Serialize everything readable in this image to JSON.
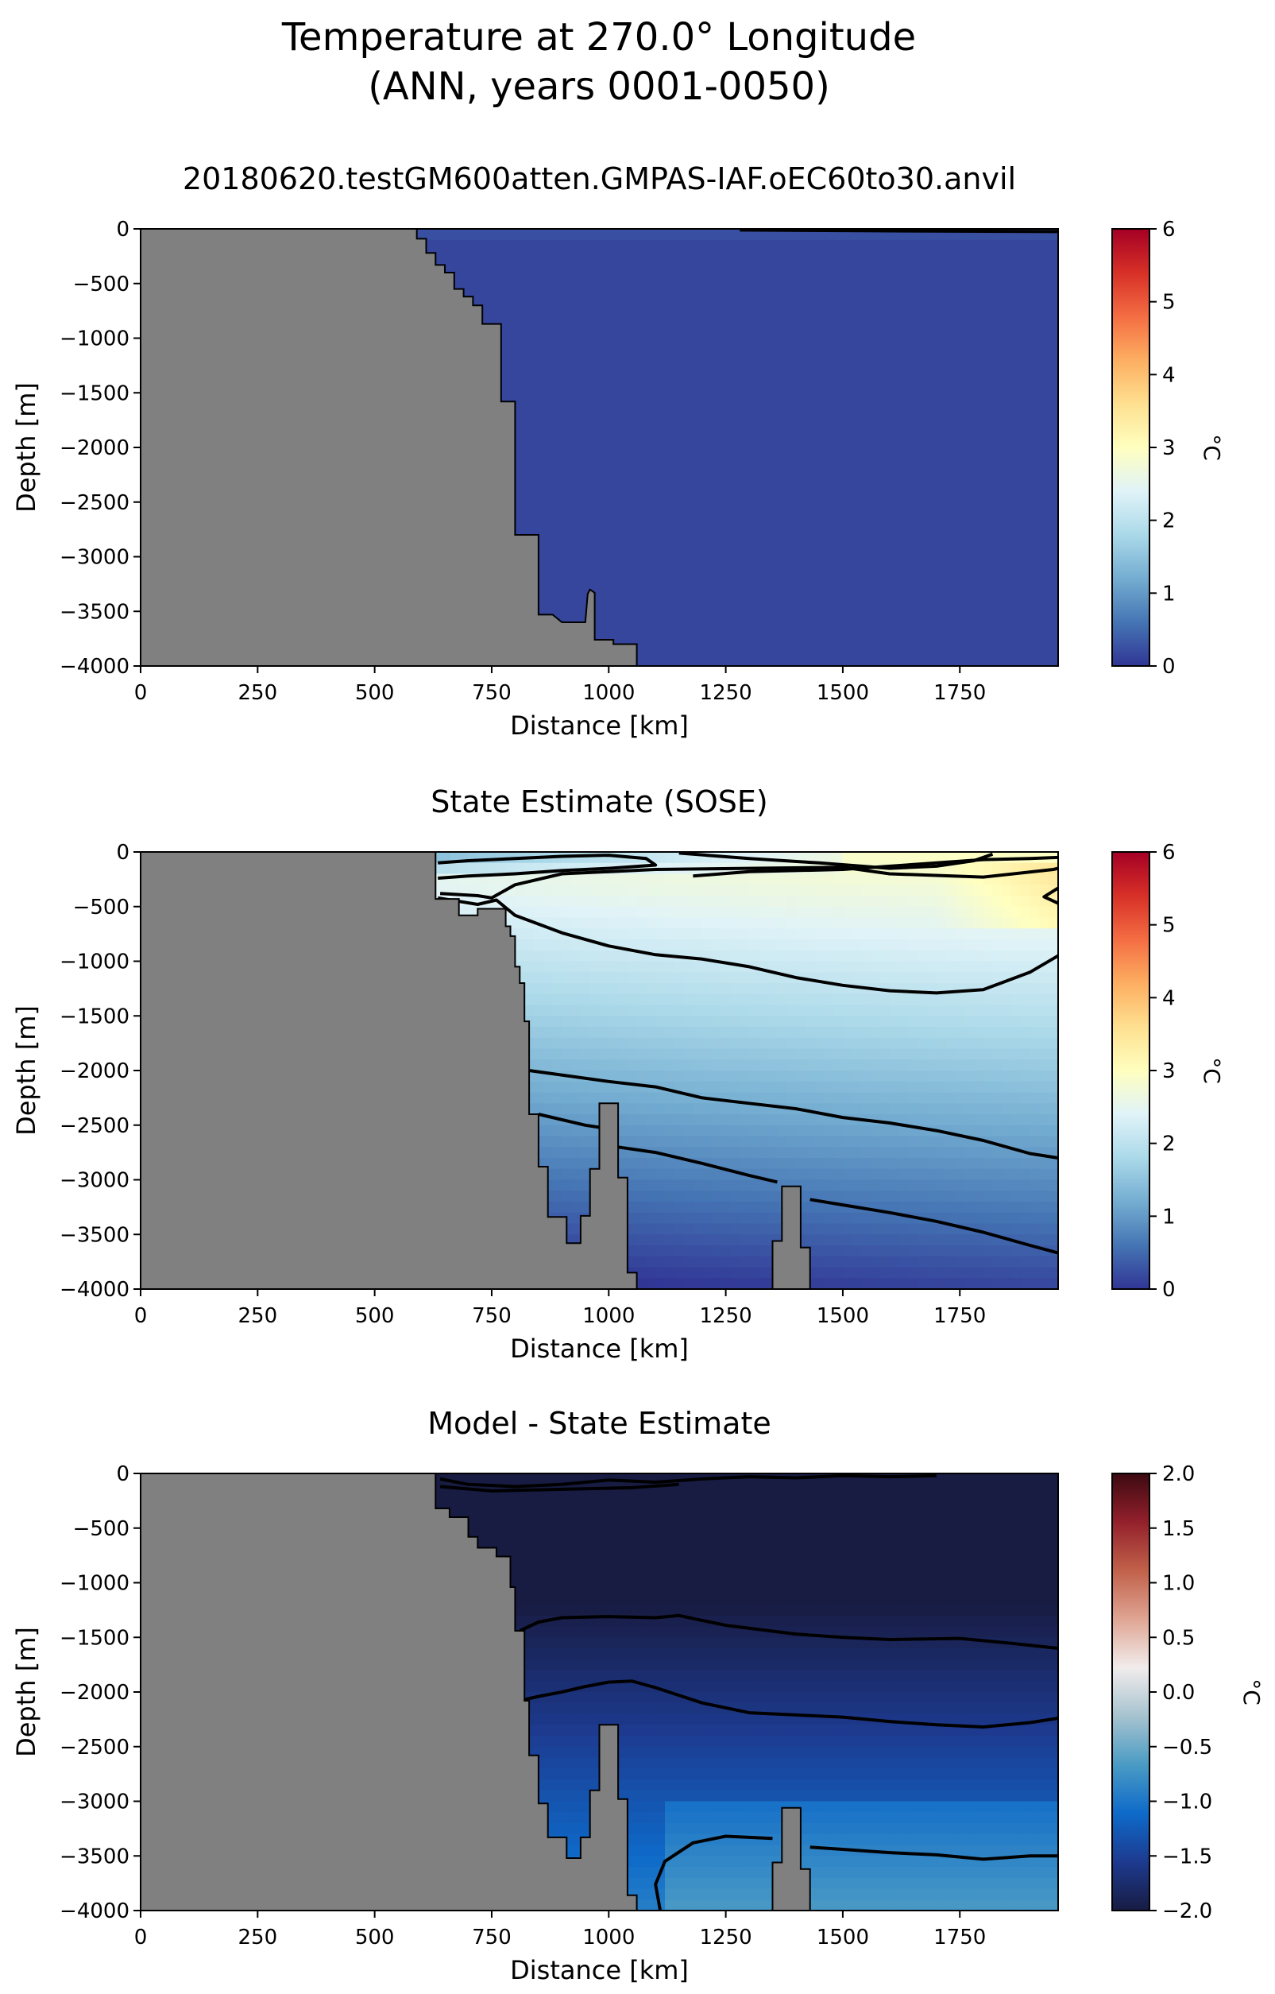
{
  "figure": {
    "title_line1": "Temperature at 270.0° Longitude",
    "title_line2": "(ANN, years 0001-0050)"
  },
  "colors": {
    "land": "#808080",
    "contour": "#000000",
    "rdylbu_r": [
      "#313695",
      "#4575b4",
      "#74add1",
      "#abd9e9",
      "#e0f3f8",
      "#ffffbf",
      "#fee090",
      "#fdae61",
      "#f46d43",
      "#d73027",
      "#a50026"
    ],
    "balance": [
      "#181c43",
      "#1d3a8f",
      "#0e6ac9",
      "#4a9bc4",
      "#a6c3cf",
      "#f1ecec",
      "#dfa593",
      "#c1614a",
      "#93202b",
      "#3c0911"
    ]
  },
  "chart_data": [
    {
      "type": "heatmap",
      "title": "20180620.testGM600atten.GMPAS-IAF.oEC60to30.anvil",
      "xlabel": "Distance [km]",
      "ylabel": "Depth [m]",
      "xlim": [
        0,
        1960
      ],
      "ylim": [
        -4000,
        0
      ],
      "xticks": [
        0,
        250,
        500,
        750,
        1000,
        1250,
        1500,
        1750
      ],
      "yticks": [
        0,
        -500,
        -1000,
        -1500,
        -2000,
        -2500,
        -3000,
        -3500,
        -4000
      ],
      "colorbar": {
        "label": "°C",
        "min": 0,
        "max": 6,
        "ticks": [
          0,
          1,
          2,
          3,
          4,
          5,
          6
        ],
        "cmap": "rdylbu_r"
      },
      "field": "cold",
      "bathymetry": [
        [
          590,
          0
        ],
        [
          590,
          -90
        ],
        [
          610,
          -90
        ],
        [
          610,
          -220
        ],
        [
          630,
          -220
        ],
        [
          630,
          -330
        ],
        [
          650,
          -330
        ],
        [
          650,
          -400
        ],
        [
          670,
          -400
        ],
        [
          670,
          -550
        ],
        [
          690,
          -550
        ],
        [
          690,
          -620
        ],
        [
          710,
          -620
        ],
        [
          710,
          -700
        ],
        [
          730,
          -700
        ],
        [
          730,
          -870
        ],
        [
          770,
          -870
        ],
        [
          770,
          -1580
        ],
        [
          800,
          -1580
        ],
        [
          800,
          -2800
        ],
        [
          850,
          -2800
        ],
        [
          850,
          -3530
        ],
        [
          880,
          -3530
        ],
        [
          900,
          -3600
        ],
        [
          950,
          -3600
        ],
        [
          955,
          -3340
        ],
        [
          960,
          -3300
        ],
        [
          970,
          -3330
        ],
        [
          970,
          -3760
        ],
        [
          1010,
          -3760
        ],
        [
          1010,
          -3800
        ],
        [
          1060,
          -3800
        ],
        [
          1060,
          -4000
        ]
      ],
      "contours": [
        [
          [
            1280,
            -10
          ],
          [
            1500,
            -15
          ],
          [
            1700,
            -20
          ],
          [
            1960,
            -25
          ]
        ]
      ]
    },
    {
      "type": "heatmap",
      "title": "State Estimate (SOSE)",
      "xlabel": "Distance [km]",
      "ylabel": "Depth [m]",
      "xlim": [
        0,
        1960
      ],
      "ylim": [
        -4000,
        0
      ],
      "xticks": [
        0,
        250,
        500,
        750,
        1000,
        1250,
        1500,
        1750
      ],
      "yticks": [
        0,
        -500,
        -1000,
        -1500,
        -2000,
        -2500,
        -3000,
        -3500,
        -4000
      ],
      "colorbar": {
        "label": "°C",
        "min": 0,
        "max": 6,
        "ticks": [
          0,
          1,
          2,
          3,
          4,
          5,
          6
        ],
        "cmap": "rdylbu_r"
      },
      "field": "sose",
      "bathymetry": [
        [
          630,
          0
        ],
        [
          630,
          -430
        ],
        [
          680,
          -430
        ],
        [
          680,
          -580
        ],
        [
          720,
          -580
        ],
        [
          720,
          -520
        ],
        [
          780,
          -520
        ],
        [
          780,
          -680
        ],
        [
          790,
          -680
        ],
        [
          790,
          -770
        ],
        [
          800,
          -770
        ],
        [
          800,
          -1050
        ],
        [
          810,
          -1050
        ],
        [
          810,
          -1200
        ],
        [
          820,
          -1200
        ],
        [
          820,
          -1550
        ],
        [
          830,
          -1550
        ],
        [
          830,
          -2400
        ],
        [
          850,
          -2400
        ],
        [
          850,
          -2880
        ],
        [
          870,
          -2880
        ],
        [
          870,
          -3340
        ],
        [
          910,
          -3340
        ],
        [
          910,
          -3580
        ],
        [
          940,
          -3580
        ],
        [
          940,
          -3330
        ],
        [
          960,
          -3330
        ],
        [
          960,
          -2900
        ],
        [
          980,
          -2900
        ],
        [
          980,
          -2300
        ],
        [
          1020,
          -2300
        ],
        [
          1020,
          -2980
        ],
        [
          1040,
          -2980
        ],
        [
          1040,
          -3850
        ],
        [
          1060,
          -3850
        ],
        [
          1060,
          -4000
        ],
        [
          1350,
          -4000
        ],
        [
          1350,
          -3560
        ],
        [
          1370,
          -3560
        ],
        [
          1370,
          -3060
        ],
        [
          1410,
          -3060
        ],
        [
          1410,
          -3620
        ],
        [
          1430,
          -3620
        ],
        [
          1430,
          -4000
        ]
      ],
      "contours": [
        [
          [
            635,
            -100
          ],
          [
            700,
            -80
          ],
          [
            800,
            -60
          ],
          [
            900,
            -40
          ],
          [
            1000,
            -30
          ],
          [
            1080,
            -60
          ],
          [
            1100,
            -120
          ],
          [
            1000,
            -150
          ],
          [
            900,
            -170
          ],
          [
            800,
            -200
          ],
          [
            700,
            -220
          ],
          [
            635,
            -240
          ]
        ],
        [
          [
            1150,
            -10
          ],
          [
            1300,
            -60
          ],
          [
            1450,
            -100
          ],
          [
            1600,
            -150
          ],
          [
            1700,
            -130
          ],
          [
            1780,
            -80
          ],
          [
            1820,
            -20
          ]
        ],
        [
          [
            1180,
            -220
          ],
          [
            1300,
            -180
          ],
          [
            1500,
            -160
          ],
          [
            1700,
            -100
          ],
          [
            1800,
            -70
          ],
          [
            1900,
            -60
          ],
          [
            1960,
            -50
          ]
        ],
        [
          [
            640,
            -380
          ],
          [
            720,
            -400
          ],
          [
            750,
            -420
          ],
          [
            800,
            -300
          ],
          [
            900,
            -200
          ],
          [
            1100,
            -160
          ],
          [
            1300,
            -150
          ],
          [
            1500,
            -140
          ],
          [
            1600,
            -200
          ],
          [
            1800,
            -230
          ],
          [
            1950,
            -160
          ],
          [
            1960,
            -150
          ]
        ],
        [
          [
            1960,
            -330
          ],
          [
            1930,
            -410
          ],
          [
            1960,
            -470
          ]
        ],
        [
          [
            635,
            -420
          ],
          [
            720,
            -480
          ],
          [
            760,
            -440
          ],
          [
            800,
            -580
          ],
          [
            900,
            -740
          ],
          [
            1000,
            -860
          ],
          [
            1100,
            -940
          ],
          [
            1200,
            -980
          ],
          [
            1300,
            -1050
          ],
          [
            1400,
            -1150
          ],
          [
            1500,
            -1220
          ],
          [
            1600,
            -1270
          ],
          [
            1700,
            -1290
          ],
          [
            1800,
            -1260
          ],
          [
            1900,
            -1100
          ],
          [
            1960,
            -950
          ]
        ],
        [
          [
            830,
            -2000
          ],
          [
            1000,
            -2100
          ],
          [
            1100,
            -2150
          ],
          [
            1200,
            -2250
          ],
          [
            1300,
            -2300
          ],
          [
            1400,
            -2350
          ],
          [
            1500,
            -2430
          ],
          [
            1600,
            -2480
          ],
          [
            1700,
            -2550
          ],
          [
            1800,
            -2640
          ],
          [
            1900,
            -2760
          ],
          [
            1960,
            -2800
          ]
        ],
        [
          [
            850,
            -2400
          ],
          [
            950,
            -2500
          ],
          [
            980,
            -2520
          ]
        ],
        [
          [
            1020,
            -2700
          ],
          [
            1100,
            -2750
          ],
          [
            1200,
            -2850
          ],
          [
            1300,
            -2960
          ],
          [
            1360,
            -3020
          ]
        ],
        [
          [
            1430,
            -3180
          ],
          [
            1500,
            -3230
          ],
          [
            1600,
            -3300
          ],
          [
            1700,
            -3380
          ],
          [
            1800,
            -3480
          ],
          [
            1900,
            -3600
          ],
          [
            1960,
            -3670
          ]
        ]
      ]
    },
    {
      "type": "heatmap",
      "title": "Model - State Estimate",
      "xlabel": "Distance [km]",
      "ylabel": "Depth [m]",
      "xlim": [
        0,
        1960
      ],
      "ylim": [
        -4000,
        0
      ],
      "xticks": [
        0,
        250,
        500,
        750,
        1000,
        1250,
        1500,
        1750
      ],
      "yticks": [
        0,
        -500,
        -1000,
        -1500,
        -2000,
        -2500,
        -3000,
        -3500,
        -4000
      ],
      "colorbar": {
        "label": "°C",
        "min": -2,
        "max": 2,
        "ticks": [
          2.0,
          1.5,
          1.0,
          0.5,
          0.0,
          -0.5,
          -1.0,
          -1.5,
          -2.0
        ],
        "tick_labels": [
          "2.0",
          "1.5",
          "1.0",
          "0.5",
          "0.0",
          "−0.5",
          "−1.0",
          "−1.5",
          "−2.0"
        ],
        "cmap": "balance"
      },
      "field": "diff",
      "bathymetry": [
        [
          630,
          0
        ],
        [
          630,
          -320
        ],
        [
          660,
          -320
        ],
        [
          660,
          -400
        ],
        [
          700,
          -400
        ],
        [
          700,
          -580
        ],
        [
          720,
          -580
        ],
        [
          720,
          -680
        ],
        [
          760,
          -680
        ],
        [
          760,
          -760
        ],
        [
          790,
          -760
        ],
        [
          790,
          -1040
        ],
        [
          800,
          -1040
        ],
        [
          800,
          -1440
        ],
        [
          820,
          -1440
        ],
        [
          820,
          -2080
        ],
        [
          830,
          -2080
        ],
        [
          830,
          -2580
        ],
        [
          850,
          -2580
        ],
        [
          850,
          -3020
        ],
        [
          870,
          -3020
        ],
        [
          870,
          -3330
        ],
        [
          910,
          -3330
        ],
        [
          910,
          -3520
        ],
        [
          940,
          -3520
        ],
        [
          940,
          -3330
        ],
        [
          960,
          -3330
        ],
        [
          960,
          -2900
        ],
        [
          980,
          -2900
        ],
        [
          980,
          -2300
        ],
        [
          1020,
          -2300
        ],
        [
          1020,
          -2980
        ],
        [
          1040,
          -2980
        ],
        [
          1040,
          -3860
        ],
        [
          1060,
          -3860
        ],
        [
          1060,
          -4000
        ],
        [
          1350,
          -4000
        ],
        [
          1350,
          -3560
        ],
        [
          1370,
          -3560
        ],
        [
          1370,
          -3060
        ],
        [
          1410,
          -3060
        ],
        [
          1410,
          -3620
        ],
        [
          1430,
          -3620
        ],
        [
          1430,
          -4000
        ]
      ],
      "contours": [
        [
          [
            640,
            -50
          ],
          [
            700,
            -100
          ],
          [
            800,
            -120
          ],
          [
            900,
            -100
          ],
          [
            1000,
            -60
          ],
          [
            1100,
            -80
          ],
          [
            1200,
            -50
          ],
          [
            1300,
            -30
          ],
          [
            1400,
            -40
          ],
          [
            1500,
            -20
          ],
          [
            1600,
            -30
          ],
          [
            1700,
            -20
          ]
        ],
        [
          [
            640,
            -120
          ],
          [
            750,
            -160
          ],
          [
            850,
            -150
          ],
          [
            950,
            -140
          ],
          [
            1050,
            -130
          ],
          [
            1150,
            -100
          ]
        ],
        [
          [
            810,
            -1440
          ],
          [
            850,
            -1360
          ],
          [
            900,
            -1320
          ],
          [
            1000,
            -1310
          ],
          [
            1100,
            -1320
          ],
          [
            1150,
            -1300
          ],
          [
            1250,
            -1390
          ],
          [
            1400,
            -1470
          ],
          [
            1500,
            -1500
          ],
          [
            1600,
            -1520
          ],
          [
            1750,
            -1510
          ],
          [
            1850,
            -1550
          ],
          [
            1960,
            -1600
          ]
        ],
        [
          [
            810,
            -2080
          ],
          [
            850,
            -2040
          ],
          [
            900,
            -2000
          ],
          [
            950,
            -1950
          ],
          [
            1000,
            -1910
          ],
          [
            1050,
            -1900
          ],
          [
            1100,
            -1960
          ],
          [
            1200,
            -2100
          ],
          [
            1300,
            -2190
          ],
          [
            1400,
            -2210
          ],
          [
            1500,
            -2230
          ],
          [
            1600,
            -2270
          ],
          [
            1700,
            -2300
          ],
          [
            1800,
            -2320
          ],
          [
            1900,
            -2280
          ],
          [
            1960,
            -2240
          ]
        ],
        [
          [
            1110,
            -4000
          ],
          [
            1100,
            -3760
          ],
          [
            1120,
            -3550
          ],
          [
            1180,
            -3380
          ],
          [
            1250,
            -3320
          ],
          [
            1350,
            -3340
          ]
        ],
        [
          [
            1430,
            -3420
          ],
          [
            1500,
            -3440
          ],
          [
            1600,
            -3470
          ],
          [
            1700,
            -3490
          ],
          [
            1800,
            -3530
          ],
          [
            1900,
            -3500
          ],
          [
            1960,
            -3500
          ]
        ]
      ]
    }
  ]
}
